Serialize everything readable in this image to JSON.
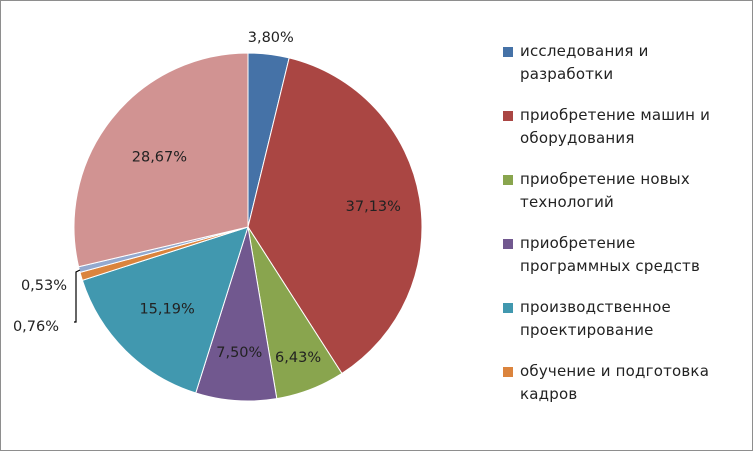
{
  "chart_data": {
    "type": "pie",
    "title": "",
    "labels": [
      "исследования и разработки",
      "приобретение машин и оборудования",
      "приобретение новых технологий",
      "приобретение программных средств",
      "производственное проектирование",
      "обучение и подготовка кадров",
      "",
      ""
    ],
    "values": [
      3.8,
      37.13,
      6.43,
      7.5,
      15.19,
      0.76,
      0.53,
      28.67
    ],
    "value_labels": [
      "3,80%",
      "37,13%",
      "6,43%",
      "7,50%",
      "15,19%",
      "0,76%",
      "0,53%",
      "28,67%"
    ],
    "colors": [
      "#4572a7",
      "#aa4643",
      "#89a54e",
      "#71588f",
      "#4198af",
      "#db843d",
      "#93a9cf",
      "#d19392"
    ],
    "legend_placement": "right",
    "legend": [
      {
        "lines": [
          "исследования и",
          "разработки"
        ],
        "color": "#4572a7"
      },
      {
        "lines": [
          "приобретение машин и",
          "оборудования"
        ],
        "color": "#aa4643"
      },
      {
        "lines": [
          "приобретение новых",
          "технологий"
        ],
        "color": "#89a54e"
      },
      {
        "lines": [
          "приобретение",
          "программных средств"
        ],
        "color": "#71588f"
      },
      {
        "lines": [
          "производственное",
          "проектирование"
        ],
        "color": "#4198af"
      },
      {
        "lines": [
          "обучение и подготовка",
          "кадров"
        ],
        "color": "#db843d"
      }
    ]
  }
}
